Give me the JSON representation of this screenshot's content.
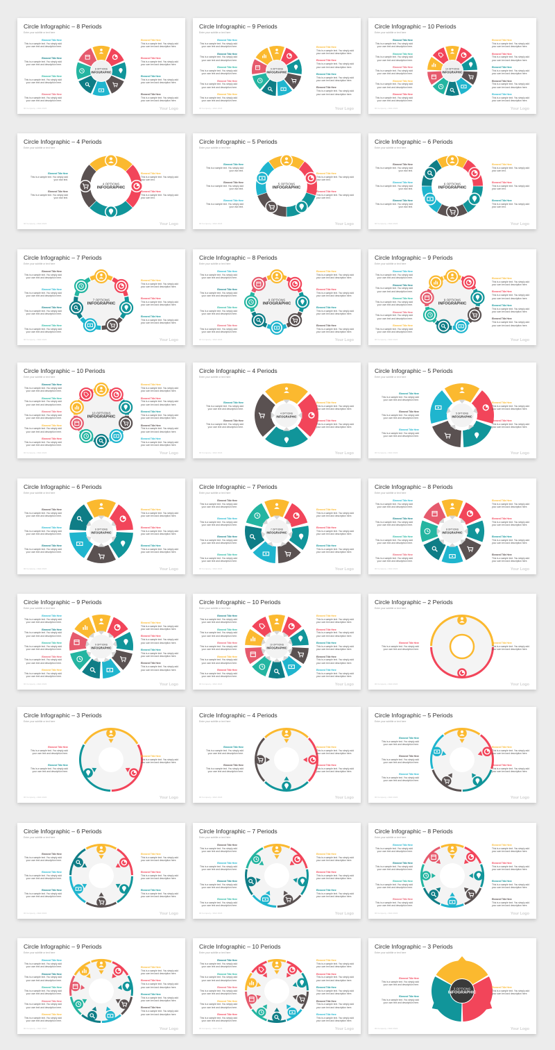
{
  "colors": [
    "#fbb92f",
    "#f2455a",
    "#11959a",
    "#5a5151",
    "#1fb5ce",
    "#0f7d86",
    "#24b5a1",
    "#e65a6d"
  ],
  "icons": [
    "user-icon",
    "pie-chart-icon",
    "location-pin-icon",
    "cart-icon",
    "money-icon",
    "search-icon",
    "clock-icon",
    "calendar-icon",
    "bar-chart-icon",
    "tag-icon"
  ],
  "footer": {
    "page_text": "00   Company • Web 2024",
    "logo": "Your Logo"
  },
  "subtitle": "Enter your subtitle or text here",
  "element_title": "Element Title Here",
  "element_body": "This is a sample text. You simply add your own text and description here.",
  "element_body_short": "This is a sample text. You simply add your own text.",
  "infographic_word": "INFOGRAPHIC",
  "slides": [
    {
      "title": "Circle Infographic – 8 Periods",
      "n": 8,
      "style": "ring",
      "options": "8 OPTIONS"
    },
    {
      "title": "Circle Infographic – 9 Periods",
      "n": 9,
      "style": "ring",
      "options": "9 OPTIONS"
    },
    {
      "title": "Circle Infographic – 10 Periods",
      "n": 10,
      "style": "ring",
      "options": "10 OPTIONS"
    },
    {
      "title": "Circle Infographic – 4 Periods",
      "n": 4,
      "style": "thick",
      "options": "4 OPTIONS"
    },
    {
      "title": "Circle Infographic – 5 Periods",
      "n": 5,
      "style": "thick",
      "options": "5 OPTIONS"
    },
    {
      "title": "Circle Infographic – 6 Periods",
      "n": 6,
      "style": "thick",
      "options": "6 OPTIONS"
    },
    {
      "title": "Circle Infographic – 7 Periods",
      "n": 7,
      "style": "bubble",
      "options": "7 OPTIONS"
    },
    {
      "title": "Circle Infographic – 8 Periods",
      "n": 8,
      "style": "bubble",
      "options": "8 OPTIONS"
    },
    {
      "title": "Circle Infographic – 9 Periods",
      "n": 9,
      "style": "bubble",
      "options": "9 OPTIONS"
    },
    {
      "title": "Circle Infographic – 10 Periods",
      "n": 10,
      "style": "bubble",
      "options": "10 OPTIONS"
    },
    {
      "title": "Circle Infographic – 4 Periods",
      "n": 4,
      "style": "arrow",
      "options": "4 OPTIONS"
    },
    {
      "title": "Circle Infographic – 5 Periods",
      "n": 5,
      "style": "arrow",
      "options": "5 OPTIONS"
    },
    {
      "title": "Circle Infographic – 6 Periods",
      "n": 6,
      "style": "arrow",
      "options": "6 OPTIONS"
    },
    {
      "title": "Circle Infographic – 7 Periods",
      "n": 7,
      "style": "arrow",
      "options": "7 OPTIONS"
    },
    {
      "title": "Circle Infographic – 8 Periods",
      "n": 8,
      "style": "arrow",
      "options": "8 OPTIONS"
    },
    {
      "title": "Circle Infographic – 9 Periods",
      "n": 9,
      "style": "arrow",
      "options": "9 OPTIONS"
    },
    {
      "title": "Circle Infographic – 10 Periods",
      "n": 10,
      "style": "arrow",
      "options": "10 OPTIONS"
    },
    {
      "title": "Circle Infographic – 2 Periods",
      "n": 2,
      "style": "outline",
      "options": ""
    },
    {
      "title": "Circle Infographic – 3 Periods",
      "n": 3,
      "style": "outline",
      "options": ""
    },
    {
      "title": "Circle Infographic – 4 Periods",
      "n": 4,
      "style": "outline",
      "options": ""
    },
    {
      "title": "Circle Infographic – 5 Periods",
      "n": 5,
      "style": "outline",
      "options": ""
    },
    {
      "title": "Circle Infographic – 6 Periods",
      "n": 6,
      "style": "outline",
      "options": ""
    },
    {
      "title": "Circle Infographic – 7 Periods",
      "n": 7,
      "style": "outline",
      "options": ""
    },
    {
      "title": "Circle Infographic – 8 Periods",
      "n": 8,
      "style": "outline",
      "options": ""
    },
    {
      "title": "Circle Infographic – 9 Periods",
      "n": 9,
      "style": "outline",
      "options": ""
    },
    {
      "title": "Circle Infographic – 10 Periods",
      "n": 10,
      "style": "outline",
      "options": ""
    },
    {
      "title": "Circle Infographic – 3 Periods",
      "n": 3,
      "style": "dark",
      "options": "3 OPTIONS"
    }
  ]
}
